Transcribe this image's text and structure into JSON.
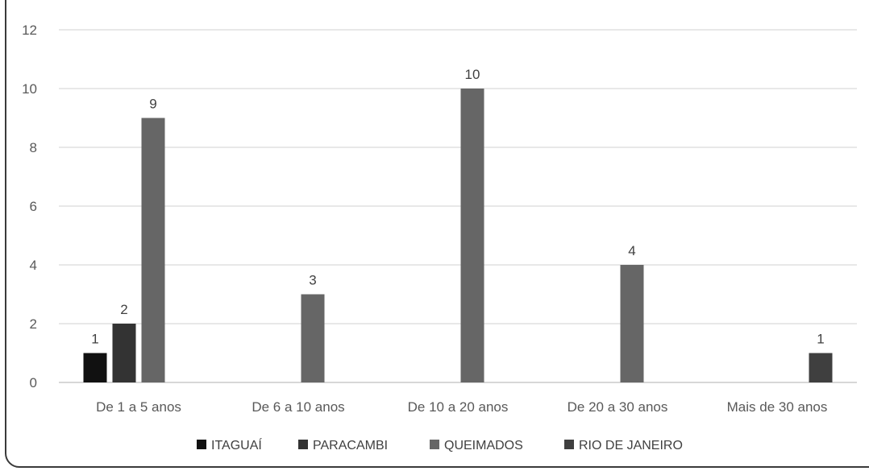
{
  "chart_data": {
    "type": "bar",
    "categories": [
      "De 1 a 5 anos",
      "De 6 a 10 anos",
      "De 10 a 20 anos",
      "De 20 a 30 anos",
      "Mais de 30 anos"
    ],
    "series": [
      {
        "name": "ITAGUAÍ",
        "color": "#111111",
        "values": [
          1,
          null,
          null,
          null,
          null
        ]
      },
      {
        "name": "PARACAMBI",
        "color": "#333333",
        "values": [
          2,
          null,
          null,
          null,
          null
        ]
      },
      {
        "name": "QUEIMADOS",
        "color": "#666666",
        "values": [
          9,
          3,
          10,
          4,
          null
        ]
      },
      {
        "name": "RIO DE JANEIRO",
        "color": "#3f3f3f",
        "values": [
          null,
          null,
          null,
          null,
          1
        ]
      }
    ],
    "ylim": [
      0,
      12
    ],
    "yticks": [
      "0",
      "2",
      "4",
      "6",
      "8",
      "10",
      "12"
    ],
    "grid": true,
    "legend_position": "bottom",
    "title": "",
    "xlabel": "",
    "ylabel": ""
  }
}
